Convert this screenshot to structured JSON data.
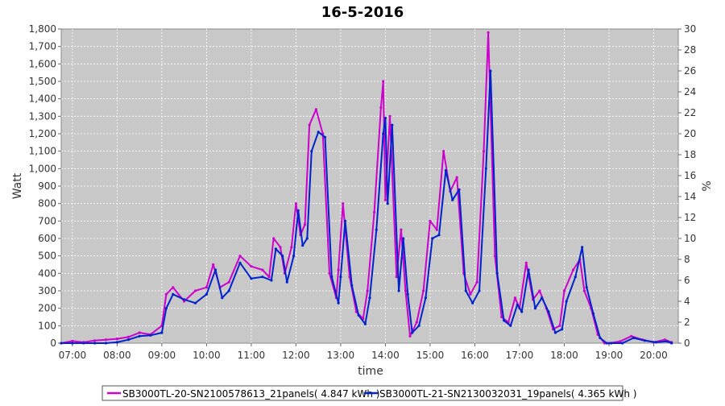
{
  "chart_data": {
    "type": "line",
    "title": "16-5-2016",
    "xlabel": "time",
    "ylabel": "Watt",
    "y2label": "%",
    "xlim": [
      6.75,
      20.55
    ],
    "ylim": [
      0,
      1800
    ],
    "y2lim": [
      0,
      30
    ],
    "x_ticks": [
      "07:00",
      "08:00",
      "09:00",
      "10:00",
      "11:00",
      "12:00",
      "13:00",
      "14:00",
      "15:00",
      "16:00",
      "17:00",
      "18:00",
      "19:00",
      "20:00"
    ],
    "y_ticks": [
      "0",
      "100",
      "200",
      "300",
      "400",
      "500",
      "600",
      "700",
      "800",
      "900",
      "1,000",
      "1,100",
      "1,200",
      "1,300",
      "1,400",
      "1,500",
      "1,600",
      "1,700",
      "1,800"
    ],
    "y2_ticks": [
      "0",
      "2",
      "4",
      "6",
      "8",
      "10",
      "12",
      "14",
      "16",
      "18",
      "20",
      "22",
      "24",
      "26",
      "28",
      "30"
    ],
    "grid": true,
    "legend_position": "bottom",
    "series": [
      {
        "name": "SB3000TL-20-SN2100578613_21panels( 4.847 kWh )",
        "color": "#cc00cc",
        "x": [
          6.75,
          7.0,
          7.25,
          7.5,
          7.75,
          8.0,
          8.25,
          8.5,
          8.75,
          9.0,
          9.1,
          9.25,
          9.5,
          9.75,
          10.0,
          10.15,
          10.3,
          10.5,
          10.75,
          11.0,
          11.25,
          11.4,
          11.5,
          11.65,
          11.75,
          11.9,
          12.0,
          12.1,
          12.2,
          12.3,
          12.45,
          12.6,
          12.75,
          12.9,
          12.95,
          13.05,
          13.2,
          13.35,
          13.5,
          13.6,
          13.75,
          13.9,
          13.95,
          14.0,
          14.1,
          14.25,
          14.35,
          14.45,
          14.55,
          14.7,
          14.85,
          15.0,
          15.15,
          15.3,
          15.45,
          15.6,
          15.75,
          15.9,
          16.05,
          16.2,
          16.3,
          16.45,
          16.6,
          16.75,
          16.9,
          17.0,
          17.15,
          17.3,
          17.45,
          17.6,
          17.75,
          17.9,
          18.0,
          18.2,
          18.35,
          18.45,
          18.6,
          18.75,
          18.9,
          19.0,
          19.25,
          19.5,
          19.75,
          20.0,
          20.25,
          20.4
        ],
        "values": [
          0,
          12,
          5,
          15,
          20,
          25,
          35,
          60,
          50,
          100,
          280,
          320,
          240,
          300,
          320,
          450,
          320,
          350,
          500,
          440,
          420,
          380,
          600,
          550,
          400,
          550,
          800,
          620,
          680,
          1250,
          1340,
          1200,
          400,
          260,
          420,
          800,
          380,
          180,
          140,
          300,
          750,
          1350,
          1500,
          820,
          1300,
          380,
          650,
          300,
          40,
          120,
          300,
          700,
          650,
          1100,
          870,
          950,
          400,
          280,
          350,
          1100,
          1780,
          500,
          150,
          120,
          260,
          200,
          460,
          250,
          300,
          200,
          80,
          100,
          300,
          420,
          480,
          300,
          200,
          50,
          0,
          0,
          10,
          40,
          20,
          5,
          20,
          5
        ]
      },
      {
        "name": "SB3000TL-21-SN2130032031_19panels( 4.365 kWh )",
        "color": "#0022cc",
        "x": [
          6.75,
          7.0,
          7.25,
          7.5,
          7.75,
          8.0,
          8.25,
          8.5,
          8.75,
          9.0,
          9.1,
          9.25,
          9.5,
          9.75,
          10.0,
          10.2,
          10.35,
          10.5,
          10.75,
          11.0,
          11.25,
          11.45,
          11.55,
          11.7,
          11.8,
          11.95,
          12.05,
          12.15,
          12.25,
          12.35,
          12.5,
          12.65,
          12.8,
          12.95,
          13.0,
          13.1,
          13.25,
          13.4,
          13.55,
          13.65,
          13.8,
          13.95,
          14.0,
          14.05,
          14.15,
          14.3,
          14.4,
          14.5,
          14.6,
          14.75,
          14.9,
          15.05,
          15.2,
          15.35,
          15.5,
          15.65,
          15.8,
          15.95,
          16.1,
          16.25,
          16.35,
          16.5,
          16.65,
          16.8,
          16.95,
          17.05,
          17.2,
          17.35,
          17.5,
          17.65,
          17.8,
          17.95,
          18.05,
          18.25,
          18.4,
          18.5,
          18.65,
          18.8,
          18.95,
          19.05,
          19.3,
          19.55,
          19.8,
          20.05,
          20.3,
          20.4
        ],
        "values": [
          0,
          0,
          0,
          0,
          0,
          5,
          20,
          40,
          45,
          60,
          200,
          280,
          250,
          230,
          280,
          420,
          260,
          300,
          460,
          370,
          380,
          360,
          540,
          500,
          350,
          500,
          760,
          560,
          600,
          1100,
          1210,
          1180,
          380,
          230,
          380,
          700,
          330,
          160,
          110,
          260,
          650,
          1200,
          1290,
          800,
          1250,
          300,
          600,
          280,
          60,
          100,
          260,
          600,
          620,
          990,
          820,
          880,
          300,
          230,
          300,
          1000,
          1560,
          400,
          130,
          100,
          220,
          180,
          420,
          200,
          260,
          180,
          60,
          80,
          240,
          380,
          550,
          320,
          170,
          30,
          0,
          0,
          0,
          30,
          15,
          5,
          10,
          0
        ]
      }
    ]
  }
}
